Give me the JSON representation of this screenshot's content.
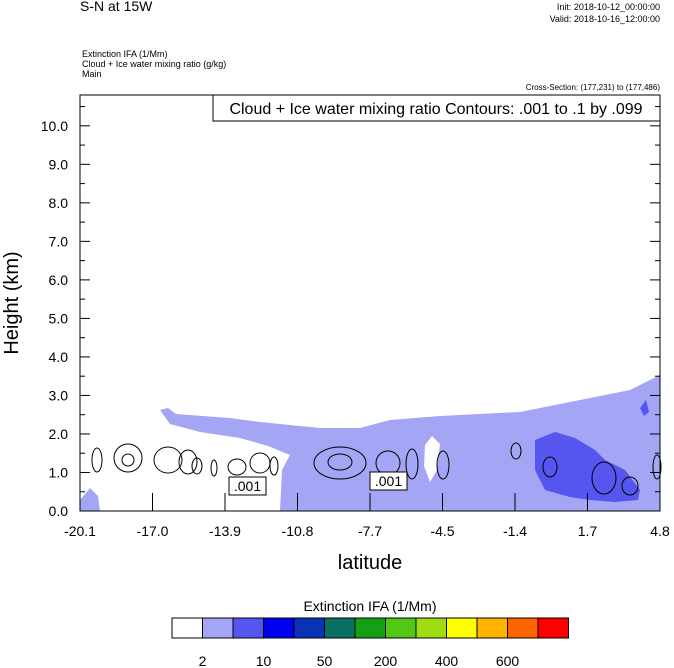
{
  "header": {
    "title": "S-N at 15W",
    "init": "Init: 2018-10-12_00:00:00",
    "valid": "Valid: 2018-10-16_12:00:00",
    "field1": "Extinction IFA   (1/Mm)",
    "field2": "Cloud + Ice water mixing ratio   (g/kg)",
    "field3": "Main",
    "cross_section": "Cross-Section: (177,231) to (177,486)"
  },
  "chart_data": {
    "type": "contour",
    "contour_info": "Cloud + Ice water mixing ratio Contours: .001 to .1 by .099",
    "xlabel": "latitude",
    "ylabel": "Height (km)",
    "x_ticks": [
      "-20.1",
      "-17.0",
      "-13.9",
      "-10.8",
      "-7.7",
      "-4.5",
      "-1.4",
      "1.7",
      "4.8"
    ],
    "y_ticks": [
      "0.0",
      "1.0",
      "2.0",
      "3.0",
      "4.0",
      "5.0",
      "6.0",
      "7.0",
      "8.0",
      "9.0",
      "10.0"
    ],
    "xlim": [
      -20.1,
      4.8
    ],
    "ylim": [
      0,
      10.8
    ],
    "contour_labels": [
      {
        "text": ".001",
        "lat": -12.6,
        "h": 0.65
      },
      {
        "text": ".001",
        "lat": -6.8,
        "h": 0.8
      }
    ],
    "colorbar": {
      "title": "Extinction IFA  (1/Mm)",
      "colors": [
        "#ffffff",
        "#a5a5f5",
        "#5555f0",
        "#0000f0",
        "#0a32b4",
        "#0a7064",
        "#14a014",
        "#50c814",
        "#a0dc14",
        "#ffff00",
        "#ffb400",
        "#ff6400",
        "#ff0000"
      ],
      "labels": [
        "2",
        "10",
        "50",
        "200",
        "400",
        "600"
      ]
    }
  }
}
